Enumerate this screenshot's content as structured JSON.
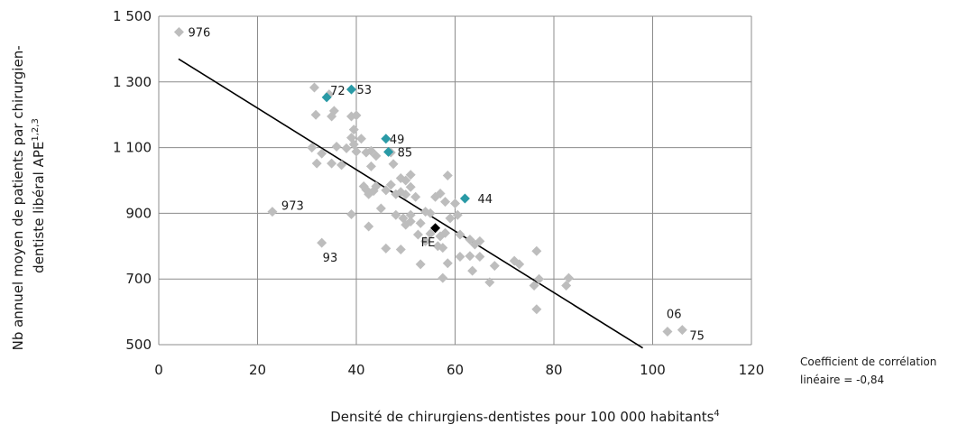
{
  "chart_data": {
    "type": "scatter",
    "xlabel": "Densité de chirurgiens-dentistes pour 100 000 habitants",
    "xlabel_sup": "4",
    "ylabel_line1": "Nb annuel moyen de patients par chirurgien-",
    "ylabel_line2": "dentiste libéral APE",
    "ylabel_sup": "1,2,3",
    "xlim": [
      0,
      120
    ],
    "ylim": [
      500,
      1500
    ],
    "x_ticks": [
      0,
      20,
      40,
      60,
      80,
      100,
      120
    ],
    "y_ticks": [
      500,
      700,
      900,
      1100,
      1300,
      1500
    ],
    "x_tick_labels": [
      "0",
      "20",
      "40",
      "60",
      "80",
      "100",
      "120"
    ],
    "y_tick_labels": [
      "500",
      "700",
      "900",
      "1 100",
      "1 300",
      "1 500"
    ],
    "grid": true,
    "colors": {
      "grey": "#bdbdbd",
      "teal": "#2a9aa6",
      "black": "#000000",
      "line": "#000000"
    },
    "trendline": {
      "x": [
        4,
        98
      ],
      "y": [
        1370,
        490
      ]
    },
    "annotation_line1": "Coefficient de corrélation",
    "annotation_line2": "linéaire  = -0,84",
    "labeled_points": [
      {
        "x": 4.1,
        "y": 1452,
        "label": "976",
        "color": "grey"
      },
      {
        "x": 34,
        "y": 1253,
        "label": "72",
        "color": "teal"
      },
      {
        "x": 39,
        "y": 1277,
        "label": "53",
        "color": "teal"
      },
      {
        "x": 46,
        "y": 1127,
        "label": "49",
        "color": "teal"
      },
      {
        "x": 46.5,
        "y": 1087,
        "label": "85",
        "color": "teal"
      },
      {
        "x": 62,
        "y": 945,
        "label": "44",
        "color": "teal"
      },
      {
        "x": 23,
        "y": 905,
        "label": "973",
        "color": "grey"
      },
      {
        "x": 33,
        "y": 810,
        "label": "93",
        "color": "grey"
      },
      {
        "x": 56,
        "y": 855,
        "label": "FE",
        "color": "black"
      },
      {
        "x": 103,
        "y": 540,
        "label": "06",
        "color": "grey"
      },
      {
        "x": 106,
        "y": 545,
        "label": "75",
        "color": "grey"
      }
    ],
    "points": [
      [
        31.5,
        1283
      ],
      [
        34.5,
        1262
      ],
      [
        31.8,
        1200
      ],
      [
        35,
        1195
      ],
      [
        35.5,
        1212
      ],
      [
        39,
        1195
      ],
      [
        40,
        1198
      ],
      [
        39.5,
        1155
      ],
      [
        31,
        1100
      ],
      [
        33,
        1082
      ],
      [
        32,
        1052
      ],
      [
        35,
        1052
      ],
      [
        36,
        1103
      ],
      [
        37,
        1047
      ],
      [
        38,
        1098
      ],
      [
        39,
        1130
      ],
      [
        39.5,
        1110
      ],
      [
        40,
        1088
      ],
      [
        41,
        1127
      ],
      [
        42,
        1085
      ],
      [
        43,
        1090
      ],
      [
        43,
        1043
      ],
      [
        44,
        1075
      ],
      [
        47,
        1085
      ],
      [
        47.5,
        1050
      ],
      [
        49,
        1007
      ],
      [
        50,
        1000
      ],
      [
        51,
        1017
      ],
      [
        41.5,
        982
      ],
      [
        42,
        972
      ],
      [
        42.5,
        958
      ],
      [
        43.5,
        968
      ],
      [
        44,
        982
      ],
      [
        46,
        970
      ],
      [
        47,
        987
      ],
      [
        48,
        958
      ],
      [
        49,
        965
      ],
      [
        50,
        957
      ],
      [
        51,
        980
      ],
      [
        52,
        950
      ],
      [
        39,
        897
      ],
      [
        45,
        915
      ],
      [
        48,
        895
      ],
      [
        49.5,
        885
      ],
      [
        51,
        895
      ],
      [
        50,
        865
      ],
      [
        51,
        875
      ],
      [
        53,
        870
      ],
      [
        54,
        905
      ],
      [
        55,
        900
      ],
      [
        56,
        950
      ],
      [
        57,
        960
      ],
      [
        58,
        935
      ],
      [
        58.5,
        1015
      ],
      [
        59,
        885
      ],
      [
        60,
        930
      ],
      [
        60.5,
        895
      ],
      [
        61,
        835
      ],
      [
        63,
        820
      ],
      [
        64,
        805
      ],
      [
        65,
        815
      ],
      [
        42.5,
        860
      ],
      [
        46,
        793
      ],
      [
        49,
        790
      ],
      [
        53,
        745
      ],
      [
        56.5,
        800
      ],
      [
        57.5,
        795
      ],
      [
        57,
        830
      ],
      [
        58,
        840
      ],
      [
        58.5,
        748
      ],
      [
        57.5,
        703
      ],
      [
        61,
        768
      ],
      [
        63,
        770
      ],
      [
        63.5,
        725
      ],
      [
        65,
        768
      ],
      [
        67,
        690
      ],
      [
        68,
        740
      ],
      [
        72,
        755
      ],
      [
        73,
        745
      ],
      [
        76,
        680
      ],
      [
        76.5,
        785
      ],
      [
        77,
        700
      ],
      [
        76.5,
        608
      ],
      [
        82.5,
        680
      ],
      [
        83,
        703
      ],
      [
        52.5,
        835
      ],
      [
        55,
        838
      ],
      [
        54,
        815
      ]
    ]
  }
}
